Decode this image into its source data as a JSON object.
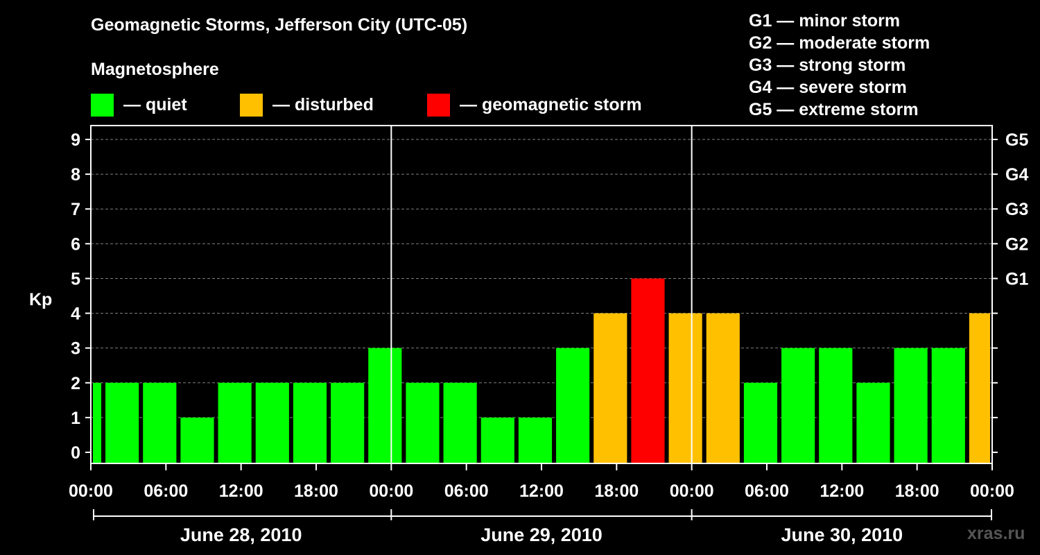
{
  "chart_data": {
    "type": "bar",
    "title": "Geomagnetic Storms, Jefferson City (UTC-05)",
    "subtitle": "Magnetosphere",
    "ylabel": "Kp",
    "ylim": [
      0,
      9
    ],
    "yticks": [
      "0",
      "1",
      "2",
      "3",
      "4",
      "5",
      "6",
      "7",
      "8",
      "9"
    ],
    "right_ticks": [
      {
        "value": 5,
        "label": "G1"
      },
      {
        "value": 6,
        "label": "G2"
      },
      {
        "value": 7,
        "label": "G3"
      },
      {
        "value": 8,
        "label": "G4"
      },
      {
        "value": 9,
        "label": "G5"
      }
    ],
    "xticks": [
      "00:00",
      "06:00",
      "12:00",
      "18:00",
      "00:00",
      "06:00",
      "12:00",
      "18:00",
      "00:00",
      "06:00",
      "12:00",
      "18:00",
      "00:00"
    ],
    "dates": [
      "June 28, 2010",
      "June 29, 2010",
      "June 30, 2010"
    ],
    "x_start": "2010-06-28 00:00",
    "x_end": "2010-07-01 00:00",
    "bars": [
      {
        "start": "2010-06-28 00:00",
        "end": "2010-06-28 01:00",
        "kp": 2,
        "level": "quiet"
      },
      {
        "start": "2010-06-28 01:00",
        "end": "2010-06-28 04:00",
        "kp": 2,
        "level": "quiet"
      },
      {
        "start": "2010-06-28 04:00",
        "end": "2010-06-28 07:00",
        "kp": 2,
        "level": "quiet"
      },
      {
        "start": "2010-06-28 07:00",
        "end": "2010-06-28 10:00",
        "kp": 1,
        "level": "quiet"
      },
      {
        "start": "2010-06-28 10:00",
        "end": "2010-06-28 13:00",
        "kp": 2,
        "level": "quiet"
      },
      {
        "start": "2010-06-28 13:00",
        "end": "2010-06-28 16:00",
        "kp": 2,
        "level": "quiet"
      },
      {
        "start": "2010-06-28 16:00",
        "end": "2010-06-28 19:00",
        "kp": 2,
        "level": "quiet"
      },
      {
        "start": "2010-06-28 19:00",
        "end": "2010-06-28 22:00",
        "kp": 2,
        "level": "quiet"
      },
      {
        "start": "2010-06-28 22:00",
        "end": "2010-06-29 01:00",
        "kp": 3,
        "level": "quiet"
      },
      {
        "start": "2010-06-29 01:00",
        "end": "2010-06-29 04:00",
        "kp": 2,
        "level": "quiet"
      },
      {
        "start": "2010-06-29 04:00",
        "end": "2010-06-29 07:00",
        "kp": 2,
        "level": "quiet"
      },
      {
        "start": "2010-06-29 07:00",
        "end": "2010-06-29 10:00",
        "kp": 1,
        "level": "quiet"
      },
      {
        "start": "2010-06-29 10:00",
        "end": "2010-06-29 13:00",
        "kp": 1,
        "level": "quiet"
      },
      {
        "start": "2010-06-29 13:00",
        "end": "2010-06-29 16:00",
        "kp": 3,
        "level": "quiet"
      },
      {
        "start": "2010-06-29 16:00",
        "end": "2010-06-29 19:00",
        "kp": 4,
        "level": "disturbed"
      },
      {
        "start": "2010-06-29 19:00",
        "end": "2010-06-29 22:00",
        "kp": 5,
        "level": "storm"
      },
      {
        "start": "2010-06-29 22:00",
        "end": "2010-06-30 01:00",
        "kp": 4,
        "level": "disturbed"
      },
      {
        "start": "2010-06-30 01:00",
        "end": "2010-06-30 04:00",
        "kp": 4,
        "level": "disturbed"
      },
      {
        "start": "2010-06-30 04:00",
        "end": "2010-06-30 07:00",
        "kp": 2,
        "level": "quiet"
      },
      {
        "start": "2010-06-30 07:00",
        "end": "2010-06-30 10:00",
        "kp": 3,
        "level": "quiet"
      },
      {
        "start": "2010-06-30 10:00",
        "end": "2010-06-30 13:00",
        "kp": 3,
        "level": "quiet"
      },
      {
        "start": "2010-06-30 13:00",
        "end": "2010-06-30 16:00",
        "kp": 2,
        "level": "quiet"
      },
      {
        "start": "2010-06-30 16:00",
        "end": "2010-06-30 19:00",
        "kp": 3,
        "level": "quiet"
      },
      {
        "start": "2010-06-30 19:00",
        "end": "2010-06-30 22:00",
        "kp": 3,
        "level": "quiet"
      },
      {
        "start": "2010-06-30 22:00",
        "end": "2010-07-01 00:00",
        "kp": 4,
        "level": "disturbed"
      }
    ],
    "grid": true,
    "colors": {
      "quiet": "#00ff00",
      "disturbed": "#ffc000",
      "storm": "#ff0000",
      "background": "#000000",
      "axis": "#ffffff",
      "grid": "#808080"
    }
  },
  "legend": {
    "quiet": "— quiet",
    "disturbed": "— disturbed",
    "storm": "— geomagnetic storm"
  },
  "g_levels": [
    "G1 — minor storm",
    "G2 — moderate storm",
    "G3 — strong storm",
    "G4 — severe storm",
    "G5 — extreme storm"
  ],
  "watermark": "xras.ru"
}
